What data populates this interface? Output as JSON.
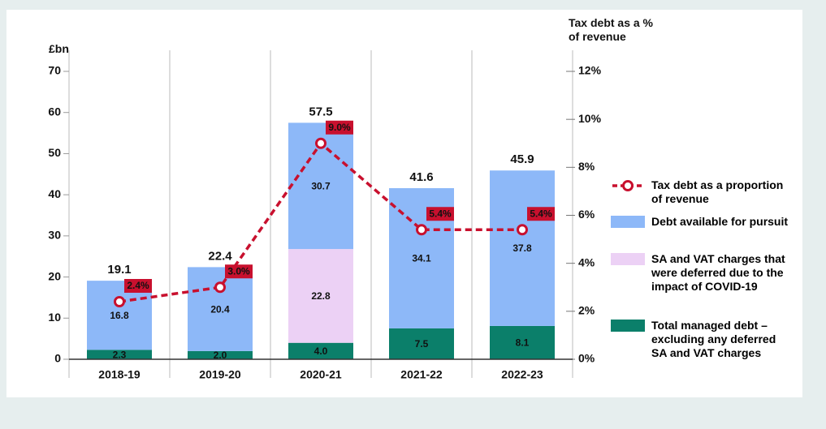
{
  "chart_data": {
    "type": "bar-line",
    "ylabel": "£bn",
    "y2label": "Tax debt as a % of revenue",
    "categories": [
      "2018-19",
      "2019-20",
      "2020-21",
      "2021-22",
      "2022-23"
    ],
    "series": [
      {
        "name": "Total managed debt – excluding any deferred SA and VAT charges",
        "color": "#0b7f6a",
        "type": "bar",
        "values": [
          2.3,
          2.0,
          4.0,
          7.5,
          8.1
        ],
        "value_labels": [
          "2.3",
          "2.0",
          "4.0",
          "7.5",
          "8.1"
        ]
      },
      {
        "name": "SA and VAT charges that were deferred due to the impact of COVID-19",
        "color": "#ecd1f5",
        "type": "bar",
        "values": [
          null,
          null,
          22.8,
          null,
          null
        ],
        "value_labels": [
          null,
          null,
          "22.8",
          null,
          null
        ]
      },
      {
        "name": "Debt available for pursuit",
        "color": "#8db8f8",
        "type": "bar",
        "values": [
          16.8,
          20.4,
          30.7,
          34.1,
          37.8
        ],
        "value_labels": [
          "16.8",
          "20.4",
          "30.7",
          "34.1",
          "37.8"
        ]
      },
      {
        "name": "Tax debt as a proportion of revenue",
        "color": "#c8102e",
        "type": "line",
        "axis": "y2",
        "values": [
          2.4,
          3.0,
          9.0,
          5.4,
          5.4
        ],
        "value_labels": [
          "2.4%",
          "3.0%",
          "9.0%",
          "5.4%",
          "5.4%"
        ]
      }
    ],
    "totals": [
      19.1,
      22.4,
      57.5,
      41.6,
      45.9
    ],
    "legend_order": [
      3,
      2,
      1,
      0
    ],
    "ylim": [
      0,
      70
    ],
    "yticks": [
      0,
      10,
      20,
      30,
      40,
      50,
      60,
      70
    ],
    "y2lim": [
      0,
      12
    ],
    "y2ticks": [
      {
        "value": 0,
        "label": "0%"
      },
      {
        "value": 2,
        "label": "2%"
      },
      {
        "value": 4,
        "label": "4%"
      },
      {
        "value": 6,
        "label": "6%"
      },
      {
        "value": 8,
        "label": "8%"
      },
      {
        "value": 10,
        "label": "10%"
      },
      {
        "value": 12,
        "label": "12%"
      }
    ],
    "legend": "right"
  }
}
